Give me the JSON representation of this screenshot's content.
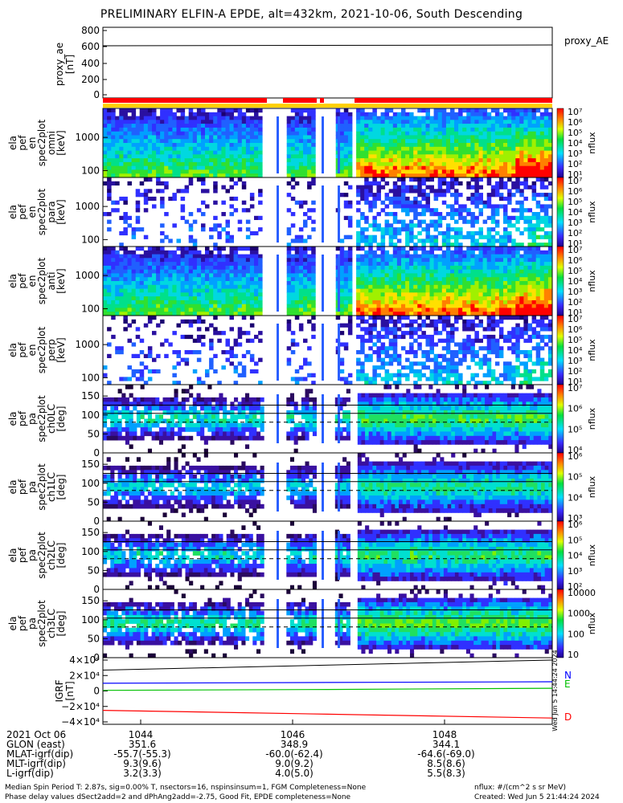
{
  "title": "PRELIMINARY ELFIN-A EPDE, alt=432km, 2021-10-06, South Descending",
  "panels": [
    {
      "ylabel": [
        "proxy_ae",
        "[nT]"
      ],
      "ticks": [
        "800",
        "600",
        "400",
        "200",
        "0"
      ],
      "legend": "proxy_AE"
    },
    {
      "ylabel": [
        "ela",
        "pef",
        "en",
        "spec2plot",
        "omni",
        "[keV]"
      ],
      "ticks": [
        "1000",
        "100"
      ],
      "cb_ticks": [
        "10⁷",
        "10⁶",
        "10⁵",
        "10⁴",
        "10³",
        "10²",
        "10¹"
      ],
      "cb_label": "nflux"
    },
    {
      "ylabel": [
        "ela",
        "pef",
        "en",
        "spec2plot",
        "para",
        "[keV]"
      ],
      "ticks": [
        "1000",
        "100"
      ],
      "cb_ticks": [
        "10⁷",
        "10⁶",
        "10⁵",
        "10⁴",
        "10³",
        "10²",
        "10¹"
      ],
      "cb_label": "nflux"
    },
    {
      "ylabel": [
        "ela",
        "pef",
        "en",
        "spec2plot",
        "anti",
        "[keV]"
      ],
      "ticks": [
        "1000",
        "100"
      ],
      "cb_ticks": [
        "10⁷",
        "10⁶",
        "10⁵",
        "10⁴",
        "10³",
        "10²",
        "10¹"
      ],
      "cb_label": "nflux"
    },
    {
      "ylabel": [
        "ela",
        "pef",
        "en",
        "spec2plot",
        "perp",
        "[keV]"
      ],
      "ticks": [
        "1000",
        "100"
      ],
      "cb_ticks": [
        "10⁷",
        "10⁶",
        "10⁵",
        "10⁴",
        "10³",
        "10²",
        "10¹"
      ],
      "cb_label": "nflux"
    },
    {
      "ylabel": [
        "ela",
        "pef",
        "pa",
        "spec2plot",
        "ch0LC",
        "[deg]"
      ],
      "ticks": [
        "150",
        "100",
        "50",
        "0"
      ],
      "cb_ticks": [
        "10⁷",
        "10⁶",
        "10⁵",
        "10⁴"
      ],
      "cb_label": "nflux"
    },
    {
      "ylabel": [
        "ela",
        "pef",
        "pa",
        "spec2plot",
        "ch1LC",
        "[deg]"
      ],
      "ticks": [
        "150",
        "100",
        "50",
        "0"
      ],
      "cb_ticks": [
        "10⁶",
        "10⁵",
        "10⁴",
        "10³"
      ],
      "cb_label": "nflux"
    },
    {
      "ylabel": [
        "ela",
        "pef",
        "pa",
        "spec2plot",
        "ch2LC",
        "[deg]"
      ],
      "ticks": [
        "150",
        "100",
        "50",
        "0"
      ],
      "cb_ticks": [
        "10⁶",
        "10⁵",
        "10⁴",
        "10³",
        "10²"
      ],
      "cb_label": "nflux"
    },
    {
      "ylabel": [
        "ela",
        "pef",
        "pa",
        "spec2plot",
        "ch3LC",
        "[deg]"
      ],
      "ticks": [
        "150",
        "100",
        "50",
        "0"
      ],
      "cb_ticks": [
        "10000",
        "1000",
        "100",
        "10"
      ],
      "cb_label": "nflux"
    },
    {
      "ylabel": [
        "IGRF",
        "[nT]"
      ],
      "ticks": [
        "4×10⁴",
        "2×10⁴",
        "0",
        "−2×10⁴",
        "−4×10⁴"
      ],
      "legend_labels": [
        "N",
        "E",
        "D"
      ],
      "legend_colors": [
        "#0000ff",
        "#00c000",
        "#ff0000"
      ]
    }
  ],
  "time_axis": {
    "rows": [
      "2021 Oct 06",
      "GLON (east)",
      "MLAT-igrf(dip)",
      "MLT-igrf(dip)",
      "L-igrf(dip)"
    ],
    "columns": [
      [
        "1044",
        "351.6",
        "-55.7(-55.3)",
        "9.3(9.6)",
        "3.2(3.3)"
      ],
      [
        "1046",
        "348.9",
        "-60.0(-62.4)",
        "9.0(9.2)",
        "4.0(5.0)"
      ],
      [
        "1048",
        "344.1",
        "-64.6(-69.0)",
        "8.5(8.6)",
        "5.5(8.3)"
      ]
    ]
  },
  "footer": {
    "line1": "Median Spin Period T: 2.87s, sig=0.00% T, nsectors=16, nspinsinsum=1, FGM Completeness=None",
    "line2": "Phase delay values dSect2add=2 and dPhAng2add=-2.75, Good Fit, EPDE completeness=None",
    "units": "nflux: #/(cm^2 s sr MeV)",
    "created": "Created: Wed Jun  5 21:44:24 2024",
    "side_stamp": "Wed Jun  5 14:44:24 2024"
  },
  "chart_data": {
    "type": "heatmap",
    "title": "PRELIMINARY ELFIN-A EPDE, alt=432km, 2021-10-06, South Descending",
    "x_ticks": [
      "1044",
      "1046",
      "1048"
    ],
    "proxy_ae": {
      "ylim": [
        0,
        800
      ],
      "values": [
        600,
        600,
        600,
        600,
        620
      ]
    },
    "igrf": {
      "ylim": [
        -40000,
        40000
      ],
      "series": [
        {
          "name": "N",
          "color": "#0000ff",
          "values": [
            10000,
            11000,
            12000
          ]
        },
        {
          "name": "E",
          "color": "#00c000",
          "values": [
            800,
            2000,
            3500
          ]
        },
        {
          "name": "D",
          "color": "#ff0000",
          "values": [
            -25000,
            -30000,
            -35000
          ]
        }
      ]
    },
    "colors": {
      "accent_red": "#ff0000",
      "accent_yellow": "#ffd000"
    }
  }
}
